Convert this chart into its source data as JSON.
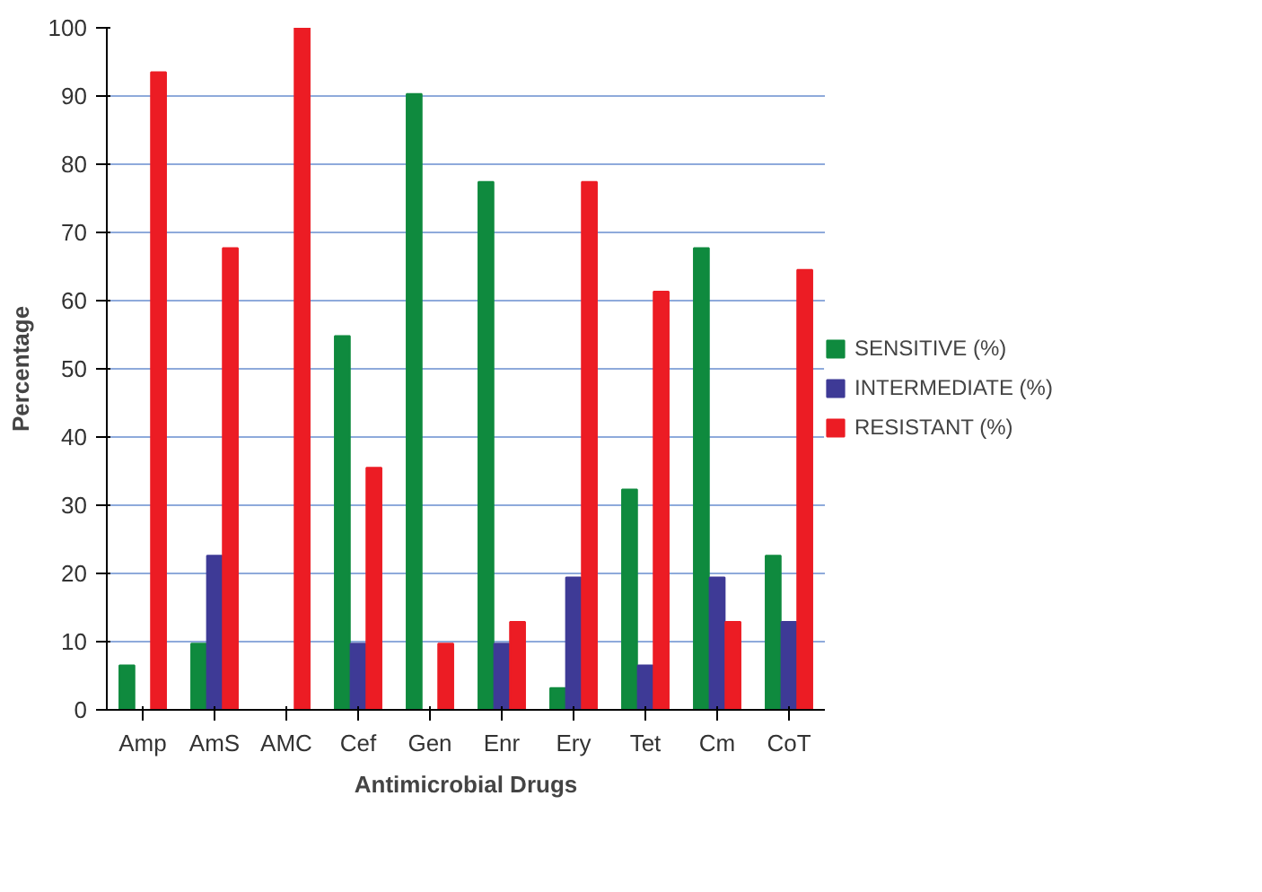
{
  "chart_data": {
    "type": "bar",
    "xlabel": "Antimicrobial Drugs",
    "ylabel": "Percentage",
    "categories": [
      "Amp",
      "AmS",
      "AMC",
      "Cef",
      "Gen",
      "Enr",
      "Ery",
      "Tet",
      "Cm",
      "CoT"
    ],
    "series": [
      {
        "name": "SENSITIVE (%)",
        "color": "#0f8a3e",
        "values": [
          6.5,
          9.7,
          0,
          54.8,
          90.3,
          77.4,
          3.2,
          32.3,
          67.7,
          22.6
        ]
      },
      {
        "name": "INTERMEDIATE (%)",
        "color": "#3e3a96",
        "values": [
          0,
          22.6,
          0,
          9.7,
          0,
          9.7,
          19.4,
          6.5,
          19.4,
          12.9
        ]
      },
      {
        "name": "RESISTANT (%)",
        "color": "#ec1c24",
        "values": [
          93.5,
          67.7,
          100,
          35.5,
          9.7,
          12.9,
          77.4,
          61.3,
          12.9,
          64.5
        ]
      }
    ],
    "ylim": [
      0,
      100
    ],
    "yticks": [
      0,
      10,
      20,
      30,
      40,
      50,
      60,
      70,
      80,
      90,
      100
    ],
    "grid": "y",
    "legend": "right"
  }
}
